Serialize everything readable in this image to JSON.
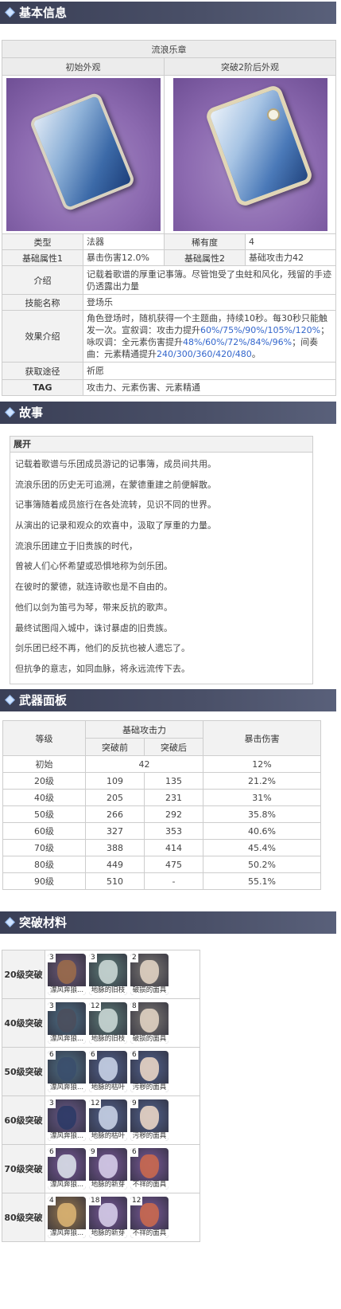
{
  "sections": {
    "basic_info": "基本信息",
    "story": "故事",
    "weapon_panel": "武器面板",
    "ascension": "突破材料"
  },
  "info": {
    "weapon_name": "流浪乐章",
    "initial_look": "初始外观",
    "ascended_look": "突破2阶后外观",
    "rows": {
      "type_label": "类型",
      "type_value": "法器",
      "rarity_label": "稀有度",
      "rarity_value": "4",
      "attr1_label": "基础属性1",
      "attr1_value": "暴击伤害12.0%",
      "attr2_label": "基础属性2",
      "attr2_value": "基础攻击力42",
      "intro_label": "介绍",
      "intro_value": "记载着歌谱的厚重记事簿。尽管饱受了虫蛀和风化，残留的手迹仍透露出力量",
      "skill_label": "技能名称",
      "skill_value": "登场乐",
      "effect_label": "效果介绍",
      "effect_text1": "角色登场时，随机获得一个主题曲，持续10秒。每30秒只能触发一次。宣叙调：攻击力提升",
      "effect_link1": "60%/75%/90%/105%/120%",
      "effect_text2": "；咏叹调：全元素伤害提升",
      "effect_link2": "48%/60%/72%/84%/96%",
      "effect_text3": "；间奏曲：元素精通提升",
      "effect_link3": "240/300/360/420/480",
      "effect_text4": "。",
      "source_label": "获取途径",
      "source_value": "祈愿",
      "tag_label": "TAG",
      "tag_value": "攻击力、元素伤害、元素精通"
    }
  },
  "story": {
    "title": "展开",
    "lines": [
      "记载着歌谱与乐团成员游记的记事簿，成员间共用。",
      "流浪乐团的历史无可追溯，在蒙德重建之前便解散。",
      "记事簿随着成员旅行在各处流转，见识不同的世界。",
      "从演出的记录和观众的欢喜中，汲取了厚重的力量。",
      "流浪乐团建立于旧贵族的时代，",
      "曾被人们心怀希望或恐惧地称为剑乐团。",
      "在彼时的蒙德，就连诗歌也是不自由的。",
      "他们以剑为笛弓为琴，带来反抗的歌声。",
      "最终试图闯入城中，诛讨暴虐的旧贵族。",
      "剑乐团已经不再，他们的反抗也被人遗忘了。",
      "但抗争的意志，如同血脉，将永远流传下去。"
    ]
  },
  "stats": {
    "h_level": "等级",
    "h_base_atk": "基础攻击力",
    "h_before": "突破前",
    "h_after": "突破后",
    "h_crit": "暴击伤害",
    "rows": [
      {
        "level": "初始",
        "before": "42",
        "after": "",
        "crit": "12%"
      },
      {
        "level": "20级",
        "before": "109",
        "after": "135",
        "crit": "21.2%"
      },
      {
        "level": "40级",
        "before": "205",
        "after": "231",
        "crit": "31%"
      },
      {
        "level": "50级",
        "before": "266",
        "after": "292",
        "crit": "35.8%"
      },
      {
        "level": "60级",
        "before": "327",
        "after": "353",
        "crit": "40.6%"
      },
      {
        "level": "70级",
        "before": "388",
        "after": "414",
        "crit": "45.4%"
      },
      {
        "level": "80级",
        "before": "449",
        "after": "475",
        "crit": "50.2%"
      },
      {
        "level": "90级",
        "before": "510",
        "after": "-",
        "crit": "55.1%"
      }
    ]
  },
  "materials": [
    {
      "level": "20级突破",
      "items": [
        {
          "count": "3",
          "name": "漂风奔狼...",
          "color": "#9a6a4a",
          "bg": "#6d5a78"
        },
        {
          "count": "3",
          "name": "地脉的旧枝",
          "color": "#c9d6d4",
          "bg": "#5f7e7a"
        },
        {
          "count": "2",
          "name": "破损的面具",
          "color": "#e0d2c2",
          "bg": "#7e7a76"
        }
      ]
    },
    {
      "level": "40级突破",
      "items": [
        {
          "count": "3",
          "name": "漂风奔狼...",
          "color": "#4a4e5c",
          "bg": "#4f6f86"
        },
        {
          "count": "12",
          "name": "地脉的旧枝",
          "color": "#c9d6d4",
          "bg": "#5f7e7a"
        },
        {
          "count": "8",
          "name": "破损的面具",
          "color": "#e0d2c2",
          "bg": "#7e7a76"
        }
      ]
    },
    {
      "level": "50级突破",
      "items": [
        {
          "count": "6",
          "name": "漂风奔狼...",
          "color": "#3a4e6c",
          "bg": "#4f6f86"
        },
        {
          "count": "6",
          "name": "地脉的枯叶",
          "color": "#c7d0e4",
          "bg": "#53638e"
        },
        {
          "count": "6",
          "name": "污秽的面具",
          "color": "#e8d4c4",
          "bg": "#53638e"
        }
      ]
    },
    {
      "level": "60级突破",
      "items": [
        {
          "count": "3",
          "name": "漂风奔狼...",
          "color": "#2c3a66",
          "bg": "#6a5a8a"
        },
        {
          "count": "12",
          "name": "地脉的枯叶",
          "color": "#c7d0e4",
          "bg": "#53638e"
        },
        {
          "count": "9",
          "name": "污秽的面具",
          "color": "#e8d4c4",
          "bg": "#53638e"
        }
      ]
    },
    {
      "level": "70级突破",
      "items": [
        {
          "count": "6",
          "name": "漂风奔狼...",
          "color": "#d9dfe8",
          "bg": "#7a5a9a"
        },
        {
          "count": "9",
          "name": "地脉的新芽",
          "color": "#d5cce8",
          "bg": "#7a5a9a"
        },
        {
          "count": "6",
          "name": "不祥的面具",
          "color": "#c9684e",
          "bg": "#7a5a9a"
        }
      ]
    },
    {
      "level": "80级突破",
      "items": [
        {
          "count": "4",
          "name": "漂风奔狼...",
          "color": "#d9b272",
          "bg": "#9a7a4e"
        },
        {
          "count": "18",
          "name": "地脉的新芽",
          "color": "#d5cce8",
          "bg": "#7a5a9a"
        },
        {
          "count": "12",
          "name": "不祥的面具",
          "color": "#c9684e",
          "bg": "#7a5a9a"
        }
      ]
    }
  ]
}
